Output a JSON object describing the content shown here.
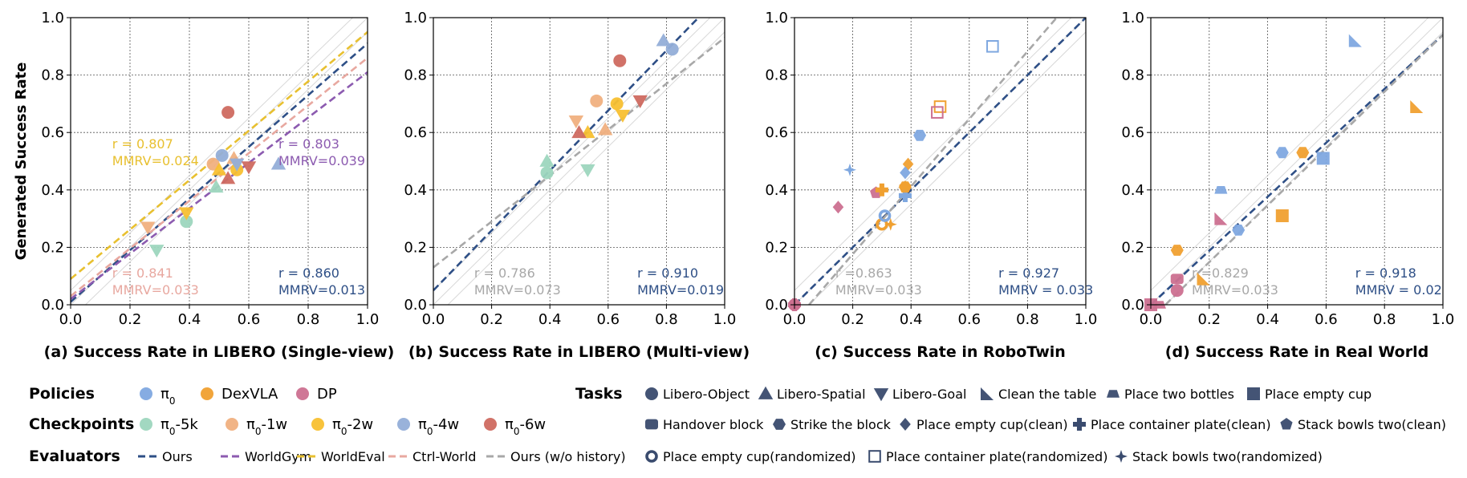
{
  "colors": {
    "blue": "#7fa8e0",
    "orange": "#f0a030",
    "pink": "#cc7090",
    "green": "#9dd6be",
    "peach": "#f0b080",
    "yellow": "#f8c030",
    "steel": "#93aed8",
    "red": "#cf6a60",
    "ours": "#2e4f86",
    "worldgym": "#8c5bb0",
    "worldeval": "#e8c030",
    "ctrlworld": "#e8a8a0",
    "gray": "#a8a8a8",
    "ident": "#d8d8d8"
  },
  "y_axis_label": "Generated Success Rate",
  "chart_data": [
    {
      "type": "scatter",
      "title": "(a) Success Rate in LIBERO (Single-view)",
      "ylabel": "Generated Success Rate",
      "xlim": [
        0,
        1
      ],
      "ylim": [
        0,
        1
      ],
      "xticks": [
        "0.0",
        "0.2",
        "0.4",
        "0.6",
        "0.8",
        "1.0"
      ],
      "yticks": [
        "0.0",
        "0.2",
        "0.4",
        "0.6",
        "0.8",
        "1.0"
      ],
      "grid": true,
      "points": [
        {
          "x": 0.39,
          "y": 0.29,
          "shape": "circle",
          "color": "green"
        },
        {
          "x": 0.29,
          "y": 0.19,
          "shape": "tri-down",
          "color": "green"
        },
        {
          "x": 0.49,
          "y": 0.41,
          "shape": "tri-up",
          "color": "green"
        },
        {
          "x": 0.26,
          "y": 0.27,
          "shape": "tri-down",
          "color": "peach"
        },
        {
          "x": 0.48,
          "y": 0.49,
          "shape": "circle",
          "color": "peach"
        },
        {
          "x": 0.55,
          "y": 0.51,
          "shape": "tri-up",
          "color": "peach"
        },
        {
          "x": 0.39,
          "y": 0.32,
          "shape": "tri-down",
          "color": "yellow"
        },
        {
          "x": 0.5,
          "y": 0.47,
          "shape": "tri-up",
          "color": "yellow"
        },
        {
          "x": 0.56,
          "y": 0.47,
          "shape": "circle",
          "color": "yellow"
        },
        {
          "x": 0.51,
          "y": 0.52,
          "shape": "circle",
          "color": "steel"
        },
        {
          "x": 0.56,
          "y": 0.49,
          "shape": "tri-down",
          "color": "steel"
        },
        {
          "x": 0.7,
          "y": 0.49,
          "shape": "tri-up",
          "color": "steel"
        },
        {
          "x": 0.53,
          "y": 0.44,
          "shape": "tri-up",
          "color": "red"
        },
        {
          "x": 0.53,
          "y": 0.67,
          "shape": "circle",
          "color": "red"
        },
        {
          "x": 0.6,
          "y": 0.48,
          "shape": "tri-down",
          "color": "red"
        }
      ],
      "lines": [
        {
          "name": "Ours",
          "color": "ours",
          "x1": 0,
          "y1": 0.01,
          "x2": 1,
          "y2": 0.91
        },
        {
          "name": "WorldGym",
          "color": "worldgym",
          "x1": 0,
          "y1": 0.02,
          "x2": 1,
          "y2": 0.81
        },
        {
          "name": "WorldEval",
          "color": "worldeval",
          "x1": 0,
          "y1": 0.09,
          "x2": 1,
          "y2": 0.95
        },
        {
          "name": "Ctrl-World",
          "color": "ctrlworld",
          "x1": 0,
          "y1": 0.03,
          "x2": 1,
          "y2": 0.86
        }
      ],
      "annotations": [
        {
          "r": "r = 0.807",
          "mmrv": "MMRV=0.024",
          "color": "worldeval",
          "pos": "mid-left"
        },
        {
          "r": "r = 0.803",
          "mmrv": "MMRV=0.039",
          "color": "worldgym",
          "pos": "mid-right"
        },
        {
          "r": "r = 0.841",
          "mmrv": "MMRV=0.033",
          "color": "ctrlworld",
          "pos": "bottom-left"
        },
        {
          "r": "r = 0.860",
          "mmrv": "MMRV=0.013",
          "color": "ours",
          "pos": "bottom-right"
        }
      ]
    },
    {
      "type": "scatter",
      "title": "(b) Success Rate in LIBERO (Multi-view)",
      "xlim": [
        0,
        1
      ],
      "ylim": [
        0,
        1
      ],
      "xticks": [
        "0.0",
        "0.2",
        "0.4",
        "0.6",
        "0.8",
        "1.0"
      ],
      "yticks": [
        "0.0",
        "0.2",
        "0.4",
        "0.6",
        "0.8",
        "1.0"
      ],
      "grid": true,
      "points": [
        {
          "x": 0.39,
          "y": 0.46,
          "shape": "circle",
          "color": "green"
        },
        {
          "x": 0.39,
          "y": 0.5,
          "shape": "tri-up",
          "color": "green"
        },
        {
          "x": 0.53,
          "y": 0.47,
          "shape": "tri-down",
          "color": "green"
        },
        {
          "x": 0.49,
          "y": 0.64,
          "shape": "tri-down",
          "color": "peach"
        },
        {
          "x": 0.56,
          "y": 0.71,
          "shape": "circle",
          "color": "peach"
        },
        {
          "x": 0.59,
          "y": 0.61,
          "shape": "tri-up",
          "color": "peach"
        },
        {
          "x": 0.53,
          "y": 0.6,
          "shape": "tri-up",
          "color": "yellow"
        },
        {
          "x": 0.63,
          "y": 0.7,
          "shape": "circle",
          "color": "yellow"
        },
        {
          "x": 0.65,
          "y": 0.66,
          "shape": "tri-down",
          "color": "yellow"
        },
        {
          "x": 0.79,
          "y": 0.92,
          "shape": "tri-up",
          "color": "steel"
        },
        {
          "x": 0.82,
          "y": 0.89,
          "shape": "circle",
          "color": "steel"
        },
        {
          "x": 0.5,
          "y": 0.6,
          "shape": "tri-up",
          "color": "red"
        },
        {
          "x": 0.64,
          "y": 0.85,
          "shape": "circle",
          "color": "red"
        },
        {
          "x": 0.71,
          "y": 0.71,
          "shape": "tri-down",
          "color": "red"
        }
      ],
      "lines": [
        {
          "name": "Ours",
          "color": "ours",
          "x1": 0,
          "y1": 0.05,
          "x2": 0.91,
          "y2": 1.0
        },
        {
          "name": "Ours (w/o history)",
          "color": "gray",
          "x1": 0,
          "y1": 0.13,
          "x2": 1,
          "y2": 0.93
        }
      ],
      "annotations": [
        {
          "r": "r = 0.786",
          "mmrv": "MMRV=0.073",
          "color": "gray",
          "pos": "bottom-left"
        },
        {
          "r": "r = 0.910",
          "mmrv": "MMRV=0.019",
          "color": "ours",
          "pos": "bottom-right"
        }
      ]
    },
    {
      "type": "scatter",
      "title": "(c) Success Rate in RoboTwin",
      "xlim": [
        0,
        1
      ],
      "ylim": [
        0,
        1
      ],
      "xticks": [
        "0.0",
        "0.2",
        "0.4",
        "0.6",
        "0.8",
        "1.0"
      ],
      "yticks": [
        "0.0",
        "0.2",
        "0.4",
        "0.6",
        "0.8",
        "1.0"
      ],
      "grid": true,
      "points": [
        {
          "x": 0.0,
          "y": 0.0,
          "shape": "plus",
          "color": "pink"
        },
        {
          "x": 0.0,
          "y": 0.0,
          "shape": "circle-open",
          "color": "pink"
        },
        {
          "x": 0.15,
          "y": 0.34,
          "shape": "diamond",
          "color": "pink"
        },
        {
          "x": 0.28,
          "y": 0.39,
          "shape": "pentagon",
          "color": "pink"
        },
        {
          "x": 0.3,
          "y": 0.28,
          "shape": "circle-open",
          "color": "orange"
        },
        {
          "x": 0.31,
          "y": 0.31,
          "shape": "circle-open",
          "color": "blue"
        },
        {
          "x": 0.33,
          "y": 0.28,
          "shape": "star",
          "color": "orange"
        },
        {
          "x": 0.3,
          "y": 0.4,
          "shape": "plus",
          "color": "orange"
        },
        {
          "x": 0.38,
          "y": 0.41,
          "shape": "pentagon",
          "color": "orange"
        },
        {
          "x": 0.39,
          "y": 0.49,
          "shape": "diamond",
          "color": "orange"
        },
        {
          "x": 0.38,
          "y": 0.38,
          "shape": "plus",
          "color": "blue"
        },
        {
          "x": 0.38,
          "y": 0.46,
          "shape": "diamond",
          "color": "blue"
        },
        {
          "x": 0.38,
          "y": 0.41,
          "shape": "hexagon",
          "color": "orange"
        },
        {
          "x": 0.43,
          "y": 0.59,
          "shape": "hexagon",
          "color": "blue"
        },
        {
          "x": 0.19,
          "y": 0.47,
          "shape": "star",
          "color": "blue"
        },
        {
          "x": 0.5,
          "y": 0.69,
          "shape": "square-open",
          "color": "orange"
        },
        {
          "x": 0.49,
          "y": 0.67,
          "shape": "square-open",
          "color": "pink"
        },
        {
          "x": 0.68,
          "y": 0.9,
          "shape": "square-open",
          "color": "blue"
        }
      ],
      "lines": [
        {
          "name": "Ours",
          "color": "ours",
          "x1": 0,
          "y1": 0,
          "x2": 1.0,
          "y2": 1.0
        },
        {
          "name": "Ours (w/o history)",
          "color": "gray",
          "x1": 0.05,
          "y1": 0,
          "x2": 0.9,
          "y2": 1.0
        }
      ],
      "annotations": [
        {
          "r": "r =0.863",
          "mmrv": "MMRV=0.033",
          "color": "gray",
          "pos": "bottom-left"
        },
        {
          "r": "r = 0.927",
          "mmrv": "MMRV = 0.033",
          "color": "ours",
          "pos": "bottom-right"
        }
      ]
    },
    {
      "type": "scatter",
      "title": "(d) Success Rate in Real World",
      "xlim": [
        0,
        1
      ],
      "ylim": [
        0,
        1
      ],
      "xticks": [
        "0.0",
        "0.2",
        "0.4",
        "0.6",
        "0.8",
        "1.0"
      ],
      "yticks": [
        "0.0",
        "0.2",
        "0.4",
        "0.6",
        "0.8",
        "1.0"
      ],
      "grid": true,
      "points": [
        {
          "x": 0.0,
          "y": 0.0,
          "shape": "square",
          "color": "pink"
        },
        {
          "x": 0.03,
          "y": 0.0,
          "shape": "bowl",
          "color": "pink"
        },
        {
          "x": 0.09,
          "y": 0.19,
          "shape": "hexagon",
          "color": "orange"
        },
        {
          "x": 0.09,
          "y": 0.09,
          "shape": "round-rect",
          "color": "pink"
        },
        {
          "x": 0.09,
          "y": 0.05,
          "shape": "circle",
          "color": "pink"
        },
        {
          "x": 0.18,
          "y": 0.09,
          "shape": "tri-corner",
          "color": "orange"
        },
        {
          "x": 0.24,
          "y": 0.3,
          "shape": "tri-corner",
          "color": "pink"
        },
        {
          "x": 0.24,
          "y": 0.4,
          "shape": "bowl",
          "color": "blue"
        },
        {
          "x": 0.3,
          "y": 0.26,
          "shape": "hexagon",
          "color": "blue"
        },
        {
          "x": 0.45,
          "y": 0.31,
          "shape": "square",
          "color": "orange"
        },
        {
          "x": 0.45,
          "y": 0.53,
          "shape": "hexagon",
          "color": "blue"
        },
        {
          "x": 0.52,
          "y": 0.53,
          "shape": "hexagon",
          "color": "orange"
        },
        {
          "x": 0.59,
          "y": 0.51,
          "shape": "square",
          "color": "blue"
        },
        {
          "x": 0.7,
          "y": 0.92,
          "shape": "tri-corner",
          "color": "blue"
        },
        {
          "x": 0.91,
          "y": 0.69,
          "shape": "tri-corner",
          "color": "orange"
        }
      ],
      "lines": [
        {
          "name": "Ours",
          "color": "ours",
          "x1": 0,
          "y1": 0,
          "x2": 1.0,
          "y2": 0.94
        },
        {
          "name": "Ours (w/o history)",
          "color": "gray",
          "x1": 0.05,
          "y1": 0,
          "x2": 1.0,
          "y2": 0.94
        }
      ],
      "annotations": [
        {
          "r": "r =0.829",
          "mmrv": "MMRV=0.033",
          "color": "gray",
          "pos": "bottom-left"
        },
        {
          "r": "r = 0.918",
          "mmrv": "MMRV = 0.02",
          "color": "ours",
          "pos": "bottom-right"
        }
      ]
    }
  ],
  "legend": {
    "policies": {
      "label": "Policies",
      "items": [
        {
          "text": "π",
          "sub": "0",
          "color": "blue"
        },
        {
          "text": "DexVLA",
          "color": "orange"
        },
        {
          "text": "DP",
          "color": "pink"
        }
      ]
    },
    "checkpoints": {
      "label": "Checkpoints",
      "items": [
        {
          "text": "π",
          "sub": "0",
          "suffix": "-5k",
          "color": "green"
        },
        {
          "text": "π",
          "sub": "0",
          "suffix": "-1w",
          "color": "peach"
        },
        {
          "text": "π",
          "sub": "0",
          "suffix": "-2w",
          "color": "yellow"
        },
        {
          "text": "π",
          "sub": "0",
          "suffix": "-4w",
          "color": "steel"
        },
        {
          "text": "π",
          "sub": "0",
          "suffix": "-6w",
          "color": "red"
        }
      ]
    },
    "evaluators": {
      "label": "Evaluators",
      "items": [
        {
          "text": "Ours",
          "color": "ours"
        },
        {
          "text": "WorldGym",
          "color": "worldgym"
        },
        {
          "text": "WorldEval",
          "color": "worldeval"
        },
        {
          "text": "Ctrl-World",
          "color": "ctrlworld"
        },
        {
          "text": "Ours (w/o history)",
          "color": "gray"
        }
      ]
    },
    "tasks": {
      "label": "Tasks",
      "rows": [
        [
          {
            "text": "Libero-Object",
            "shape": "circle"
          },
          {
            "text": "Libero-Spatial",
            "shape": "tri-up"
          },
          {
            "text": "Libero-Goal",
            "shape": "tri-down"
          },
          {
            "text": "Clean the table",
            "shape": "tri-corner"
          },
          {
            "text": "Place two bottles",
            "shape": "bowl"
          },
          {
            "text": "Place empty cup",
            "shape": "square"
          }
        ],
        [
          {
            "text": "Handover block",
            "shape": "round-rect"
          },
          {
            "text": "Strike the block",
            "shape": "hexagon"
          },
          {
            "text": "Place empty cup(clean)",
            "shape": "diamond"
          },
          {
            "text": "Place container plate(clean)",
            "shape": "plus"
          },
          {
            "text": "Stack bowls two(clean)",
            "shape": "pentagon"
          }
        ],
        [
          {
            "text": "Place empty cup(randomized)",
            "shape": "circle-open"
          },
          {
            "text": "Place container plate(randomized)",
            "shape": "square-open"
          },
          {
            "text": "Stack bowls two(randomized)",
            "shape": "star"
          }
        ]
      ]
    }
  }
}
